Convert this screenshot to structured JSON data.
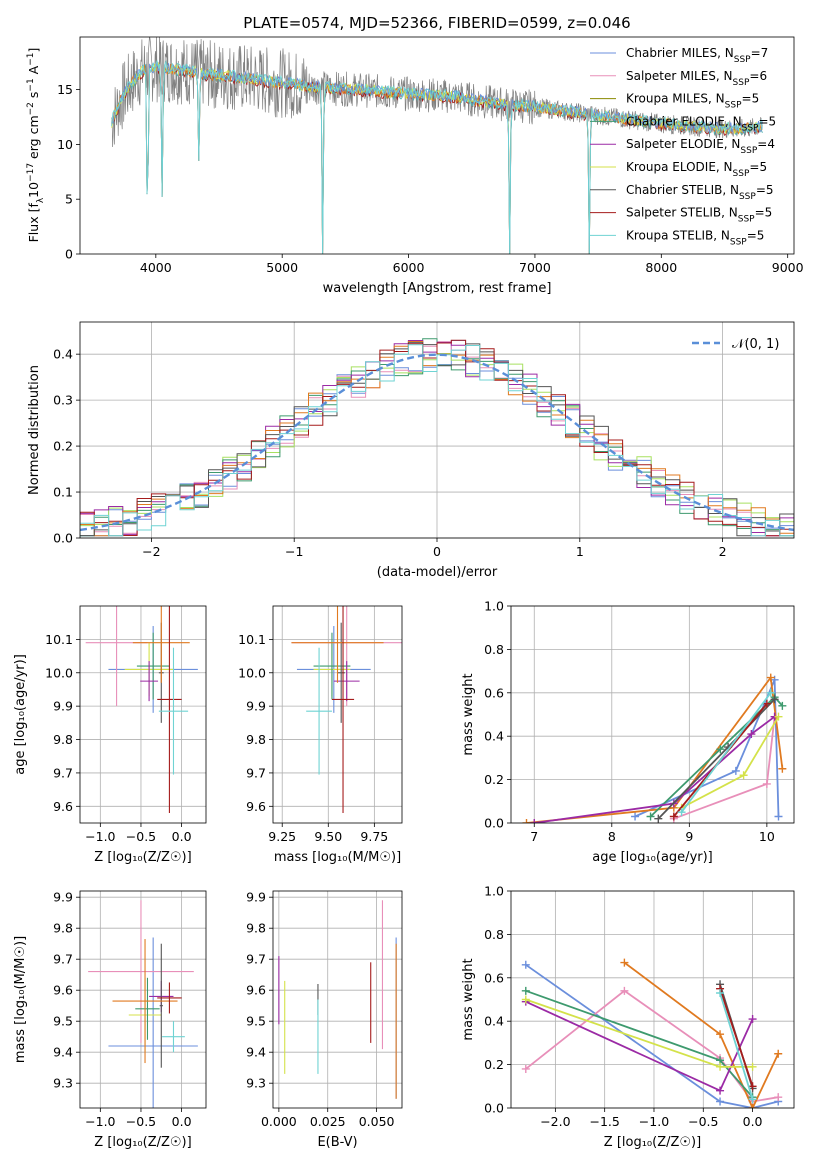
{
  "colors": [
    "#6b8fdc",
    "#e88fb9",
    "#8a8a00",
    "#3e9a6e",
    "#9b2aa5",
    "#d4e24a",
    "#555555",
    "#a51c1c",
    "#6fd3d3"
  ],
  "extra_colors": {
    "orange": "#e07a20",
    "gray": "#808080",
    "dash": "#5a8fd8",
    "lightgreen": "#a8e060",
    "teal": "#4fb0b0"
  },
  "chart_data": [
    {
      "id": "spectrum",
      "type": "line",
      "title": "PLATE=0574, MJD=52366, FIBERID=0599, z=0.046",
      "xlabel": "wavelength [Angstrom, rest frame]",
      "ylabel_parts": {
        "pre": "Flux [f",
        "sub": "λ",
        "mid": "10",
        "sup1": "−17",
        "post1": " erg cm",
        "sup2": "−2",
        "post2": " s",
        "sup3": "−1",
        "post3": " A",
        "sup4": "−1",
        "end": "]"
      },
      "xlim": [
        3400,
        9050
      ],
      "ylim": [
        0,
        19.8
      ],
      "xticks": [
        4000,
        5000,
        6000,
        7000,
        8000,
        9000
      ],
      "yticks": [
        0,
        5,
        10,
        15
      ],
      "legend_position": "upper-right",
      "legend": [
        {
          "label": "Chabrier MILES, N",
          "sub": "SSP",
          "val": "=7"
        },
        {
          "label": "Salpeter MILES, N",
          "sub": "SSP",
          "val": "=6"
        },
        {
          "label": "Kroupa MILES, N",
          "sub": "SSP",
          "val": "=5"
        },
        {
          "label": "Chabrier ELODIE, N",
          "sub": "SSP",
          "val": "=5"
        },
        {
          "label": "Salpeter ELODIE, N",
          "sub": "SSP",
          "val": "=4"
        },
        {
          "label": "Kroupa ELODIE, N",
          "sub": "SSP",
          "val": "=5"
        },
        {
          "label": "Chabrier STELIB, N",
          "sub": "SSP",
          "val": "=5"
        },
        {
          "label": "Salpeter STELIB, N",
          "sub": "SSP",
          "val": "=5"
        },
        {
          "label": "Kroupa STELIB, N",
          "sub": "SSP",
          "val": "=5"
        }
      ],
      "continuum": [
        [
          3650,
          12
        ],
        [
          3720,
          14
        ],
        [
          3800,
          15.5
        ],
        [
          3900,
          16.8
        ],
        [
          4000,
          17
        ],
        [
          4200,
          16.8
        ],
        [
          4400,
          16.4
        ],
        [
          4600,
          16.2
        ],
        [
          4800,
          15.9
        ],
        [
          5000,
          15.6
        ],
        [
          5200,
          15.3
        ],
        [
          5400,
          15.1
        ],
        [
          5600,
          15.0
        ],
        [
          5800,
          14.8
        ],
        [
          6000,
          14.6
        ],
        [
          6200,
          14.5
        ],
        [
          6400,
          14.3
        ],
        [
          6600,
          13.9
        ],
        [
          6800,
          13.6
        ],
        [
          7000,
          13.4
        ],
        [
          7200,
          13.1
        ],
        [
          7400,
          12.8
        ],
        [
          7600,
          12.5
        ],
        [
          7800,
          12.2
        ],
        [
          8000,
          11.9
        ],
        [
          8200,
          11.7
        ],
        [
          8400,
          11.5
        ],
        [
          8600,
          11.4
        ],
        [
          8800,
          11.6
        ]
      ],
      "dips": [
        [
          3934,
          0
        ],
        [
          4050,
          5.2
        ],
        [
          4340,
          8.5
        ],
        [
          5320,
          0
        ],
        [
          6800,
          0
        ],
        [
          7430,
          0
        ]
      ]
    },
    {
      "id": "residuals",
      "type": "histogram",
      "xlabel": "(data-model)/error",
      "ylabel": "Normed distribution",
      "xlim": [
        -2.5,
        2.5
      ],
      "ylim": [
        0,
        0.47
      ],
      "xticks": [
        -2,
        -1,
        0,
        1,
        2
      ],
      "yticks": [
        0.0,
        0.1,
        0.2,
        0.3,
        0.4
      ],
      "bin_width": 0.1,
      "legend_label": "𝒩(0, 1)",
      "legend_position": "upper-right"
    },
    {
      "id": "age-vs-Z",
      "type": "errorbar",
      "xlabel": "Z [log₁₀(Z/Z☉)]",
      "ylabel": "age  [log₁₀(age/yr)]",
      "xlim": [
        -1.25,
        0.3
      ],
      "ylim": [
        9.55,
        10.2
      ],
      "xticks": [
        -1.0,
        -0.5,
        0.0
      ],
      "yticks": [
        9.6,
        9.7,
        9.8,
        9.9,
        10.0,
        10.1
      ],
      "points": [
        {
          "x": -0.35,
          "xe": 0.55,
          "y": 10.01,
          "ye": 0.13,
          "c": 0
        },
        {
          "x": -0.8,
          "xe": 0.38,
          "y": 10.09,
          "ye": 0.19,
          "c": 1
        },
        {
          "x": -0.4,
          "xe": 0.3,
          "y": 10.01,
          "ye": 0.08,
          "c": 5
        },
        {
          "x": -0.35,
          "xe": 0.2,
          "y": 10.02,
          "ye": 0.1,
          "c": 3
        },
        {
          "x": -0.4,
          "xe": 0.11,
          "y": 9.975,
          "ye": 0.06,
          "c": 4
        },
        {
          "x": -0.25,
          "xe": 0.03,
          "y": 10.0,
          "ye": 0.15,
          "c": 6
        },
        {
          "x": -0.25,
          "xe": 0.35,
          "y": 10.09,
          "ye": 0.12,
          "c": 99
        },
        {
          "x": -0.15,
          "xe": 0.15,
          "y": 9.92,
          "ye": 0.34,
          "c": 7
        },
        {
          "x": -0.1,
          "xe": 0.18,
          "y": 9.885,
          "ye": 0.19,
          "c": 8
        }
      ]
    },
    {
      "id": "age-vs-mass",
      "type": "errorbar",
      "xlabel": "mass [log₁₀(M/M☉)]",
      "ylabel": "",
      "xlim": [
        9.2,
        9.9
      ],
      "ylim": [
        9.55,
        10.2
      ],
      "xticks": [
        9.25,
        9.5,
        9.75
      ],
      "yticks": [
        9.6,
        9.7,
        9.8,
        9.9,
        10.0,
        10.1
      ],
      "points": [
        {
          "x": 9.53,
          "xe": 0.2,
          "y": 10.01,
          "ye": 0.13,
          "c": 0
        },
        {
          "x": 9.6,
          "xe": 0.3,
          "y": 10.09,
          "ye": 0.19,
          "c": 1
        },
        {
          "x": 9.52,
          "xe": 0.1,
          "y": 10.01,
          "ye": 0.08,
          "c": 5
        },
        {
          "x": 9.52,
          "xe": 0.1,
          "y": 10.02,
          "ye": 0.1,
          "c": 3
        },
        {
          "x": 9.6,
          "xe": 0.07,
          "y": 9.975,
          "ye": 0.06,
          "c": 4
        },
        {
          "x": 9.57,
          "xe": 0.02,
          "y": 10.0,
          "ye": 0.15,
          "c": 6
        },
        {
          "x": 9.55,
          "xe": 0.25,
          "y": 10.09,
          "ye": 0.12,
          "c": 99
        },
        {
          "x": 9.58,
          "xe": 0.06,
          "y": 9.92,
          "ye": 0.34,
          "c": 7
        },
        {
          "x": 9.45,
          "xe": 0.07,
          "y": 9.885,
          "ye": 0.19,
          "c": 8
        }
      ]
    },
    {
      "id": "weight-vs-age",
      "type": "line",
      "xlabel": "age  [log₁₀(age/yr)]",
      "ylabel": "mass weight",
      "xlim": [
        6.7,
        10.35
      ],
      "ylim": [
        0,
        1.0
      ],
      "xticks": [
        7,
        8,
        9,
        10
      ],
      "yticks": [
        0.0,
        0.2,
        0.4,
        0.6,
        0.8,
        1.0
      ],
      "series": [
        {
          "c": 0,
          "pts": [
            [
              8.3,
              0.03
            ],
            [
              9.6,
              0.24
            ],
            [
              10.1,
              0.66
            ],
            [
              10.15,
              0.03
            ]
          ]
        },
        {
          "c": 1,
          "pts": [
            [
              8.8,
              0.02
            ],
            [
              10.0,
              0.18
            ],
            [
              10.1,
              0.49
            ]
          ]
        },
        {
          "c": 99,
          "pts": [
            [
              6.9,
              0.0
            ],
            [
              8.8,
              0.07
            ],
            [
              10.05,
              0.67
            ],
            [
              10.2,
              0.25
            ]
          ]
        },
        {
          "c": 3,
          "pts": [
            [
              8.5,
              0.03
            ],
            [
              9.4,
              0.34
            ],
            [
              10.1,
              0.58
            ],
            [
              10.2,
              0.54
            ]
          ]
        },
        {
          "c": 4,
          "pts": [
            [
              7.0,
              0.0
            ],
            [
              8.8,
              0.09
            ],
            [
              9.8,
              0.41
            ],
            [
              10.1,
              0.49
            ]
          ]
        },
        {
          "c": 5,
          "pts": [
            [
              8.9,
              0.07
            ],
            [
              9.7,
              0.22
            ],
            [
              10.15,
              0.49
            ]
          ]
        },
        {
          "c": 6,
          "pts": [
            [
              8.6,
              0.02
            ],
            [
              9.5,
              0.35
            ],
            [
              10.1,
              0.57
            ]
          ]
        },
        {
          "c": 7,
          "pts": [
            [
              8.8,
              0.03
            ],
            [
              10.0,
              0.55
            ]
          ]
        },
        {
          "c": 8,
          "pts": [
            [
              8.9,
              0.05
            ],
            [
              10.05,
              0.6
            ]
          ]
        }
      ]
    },
    {
      "id": "mass-vs-Z",
      "type": "errorbar",
      "xlabel": "Z [log₁₀(Z/Z☉)]",
      "ylabel": "mass [log₁₀(M/M☉)]",
      "xlim": [
        -1.25,
        0.3
      ],
      "ylim": [
        9.22,
        9.92
      ],
      "xticks": [
        -1.0,
        -0.5,
        0.0
      ],
      "yticks": [
        9.3,
        9.4,
        9.5,
        9.6,
        9.7,
        9.8,
        9.9
      ],
      "points": [
        {
          "x": -0.35,
          "xe": 0.55,
          "y": 9.42,
          "ye": 0.35,
          "c": 0
        },
        {
          "x": -0.5,
          "xe": 0.65,
          "y": 9.66,
          "ye": 0.23,
          "c": 1
        },
        {
          "x": -0.45,
          "xe": 0.2,
          "y": 9.52,
          "ye": 0.12,
          "c": 5
        },
        {
          "x": -0.42,
          "xe": 0.15,
          "y": 9.54,
          "ye": 0.1,
          "c": 3
        },
        {
          "x": -0.25,
          "xe": 0.15,
          "y": 9.58,
          "ye": 0.05,
          "c": 4
        },
        {
          "x": -0.25,
          "xe": 0.02,
          "y": 9.55,
          "ye": 0.2,
          "c": 6
        },
        {
          "x": -0.45,
          "xe": 0.4,
          "y": 9.565,
          "ye": 0.2,
          "c": 99
        },
        {
          "x": -0.15,
          "xe": 0.15,
          "y": 9.575,
          "ye": 0.05,
          "c": 7
        },
        {
          "x": -0.1,
          "xe": 0.14,
          "y": 9.45,
          "ye": 0.05,
          "c": 8
        }
      ]
    },
    {
      "id": "mass-vs-ebv",
      "type": "errorbar",
      "xlabel": "E(B-V)",
      "ylabel": "",
      "xlim": [
        -0.003,
        0.063
      ],
      "ylim": [
        9.22,
        9.92
      ],
      "xticks": [
        0.0,
        0.025,
        0.05
      ],
      "yticks": [
        9.3,
        9.4,
        9.5,
        9.6,
        9.7,
        9.8,
        9.9
      ],
      "points": [
        {
          "x": 0.0,
          "xe": 0,
          "y": 9.6,
          "ye": 0.11,
          "c": 4
        },
        {
          "x": 0.003,
          "xe": 0,
          "y": 9.48,
          "ye": 0.15,
          "c": 5
        },
        {
          "x": 0.02,
          "xe": 0,
          "y": 9.57,
          "ye": 0.05,
          "c": 6
        },
        {
          "x": 0.02,
          "xe": 0,
          "y": 9.45,
          "ye": 0.12,
          "c": 8
        },
        {
          "x": 0.047,
          "xe": 0,
          "y": 9.56,
          "ye": 0.13,
          "c": 7
        },
        {
          "x": 0.053,
          "xe": 0,
          "y": 9.65,
          "ye": 0.24,
          "c": 1
        },
        {
          "x": 0.06,
          "xe": 0,
          "y": 9.51,
          "ye": 0.26,
          "c": 0
        },
        {
          "x": 0.06,
          "xe": 0,
          "y": 9.5,
          "ye": 0.25,
          "c": 99
        }
      ]
    },
    {
      "id": "weight-vs-Z",
      "type": "line",
      "xlabel": "Z [log₁₀(Z/Z☉)]",
      "ylabel": "mass weight",
      "xlim": [
        -2.45,
        0.42
      ],
      "ylim": [
        0,
        1.0
      ],
      "xticks": [
        -2.0,
        -1.5,
        -1.0,
        -0.5,
        0.0
      ],
      "yticks": [
        0.0,
        0.2,
        0.4,
        0.6,
        0.8,
        1.0
      ],
      "series": [
        {
          "c": 0,
          "pts": [
            [
              -2.3,
              0.66
            ],
            [
              -0.33,
              0.03
            ],
            [
              0.0,
              0.0
            ],
            [
              0.26,
              0.03
            ]
          ]
        },
        {
          "c": 1,
          "pts": [
            [
              -2.3,
              0.18
            ],
            [
              -1.3,
              0.54
            ],
            [
              -0.33,
              0.23
            ],
            [
              0.0,
              0.03
            ],
            [
              0.26,
              0.05
            ]
          ]
        },
        {
          "c": 99,
          "pts": [
            [
              -1.3,
              0.67
            ],
            [
              -0.33,
              0.34
            ],
            [
              0.0,
              0.0
            ],
            [
              0.26,
              0.25
            ]
          ]
        },
        {
          "c": 3,
          "pts": [
            [
              -2.3,
              0.54
            ],
            [
              -0.33,
              0.22
            ],
            [
              0.0,
              0.05
            ]
          ]
        },
        {
          "c": 4,
          "pts": [
            [
              -2.3,
              0.49
            ],
            [
              -0.33,
              0.08
            ],
            [
              0.0,
              0.41
            ]
          ]
        },
        {
          "c": 5,
          "pts": [
            [
              -2.3,
              0.5
            ],
            [
              -0.33,
              0.19
            ],
            [
              0.0,
              0.19
            ]
          ]
        },
        {
          "c": 6,
          "pts": [
            [
              -0.33,
              0.57
            ],
            [
              0.0,
              0.09
            ]
          ]
        },
        {
          "c": 7,
          "pts": [
            [
              -0.33,
              0.55
            ],
            [
              0.0,
              0.1
            ]
          ]
        },
        {
          "c": 8,
          "pts": [
            [
              -0.33,
              0.53
            ],
            [
              0.0,
              0.04
            ]
          ]
        }
      ]
    }
  ]
}
